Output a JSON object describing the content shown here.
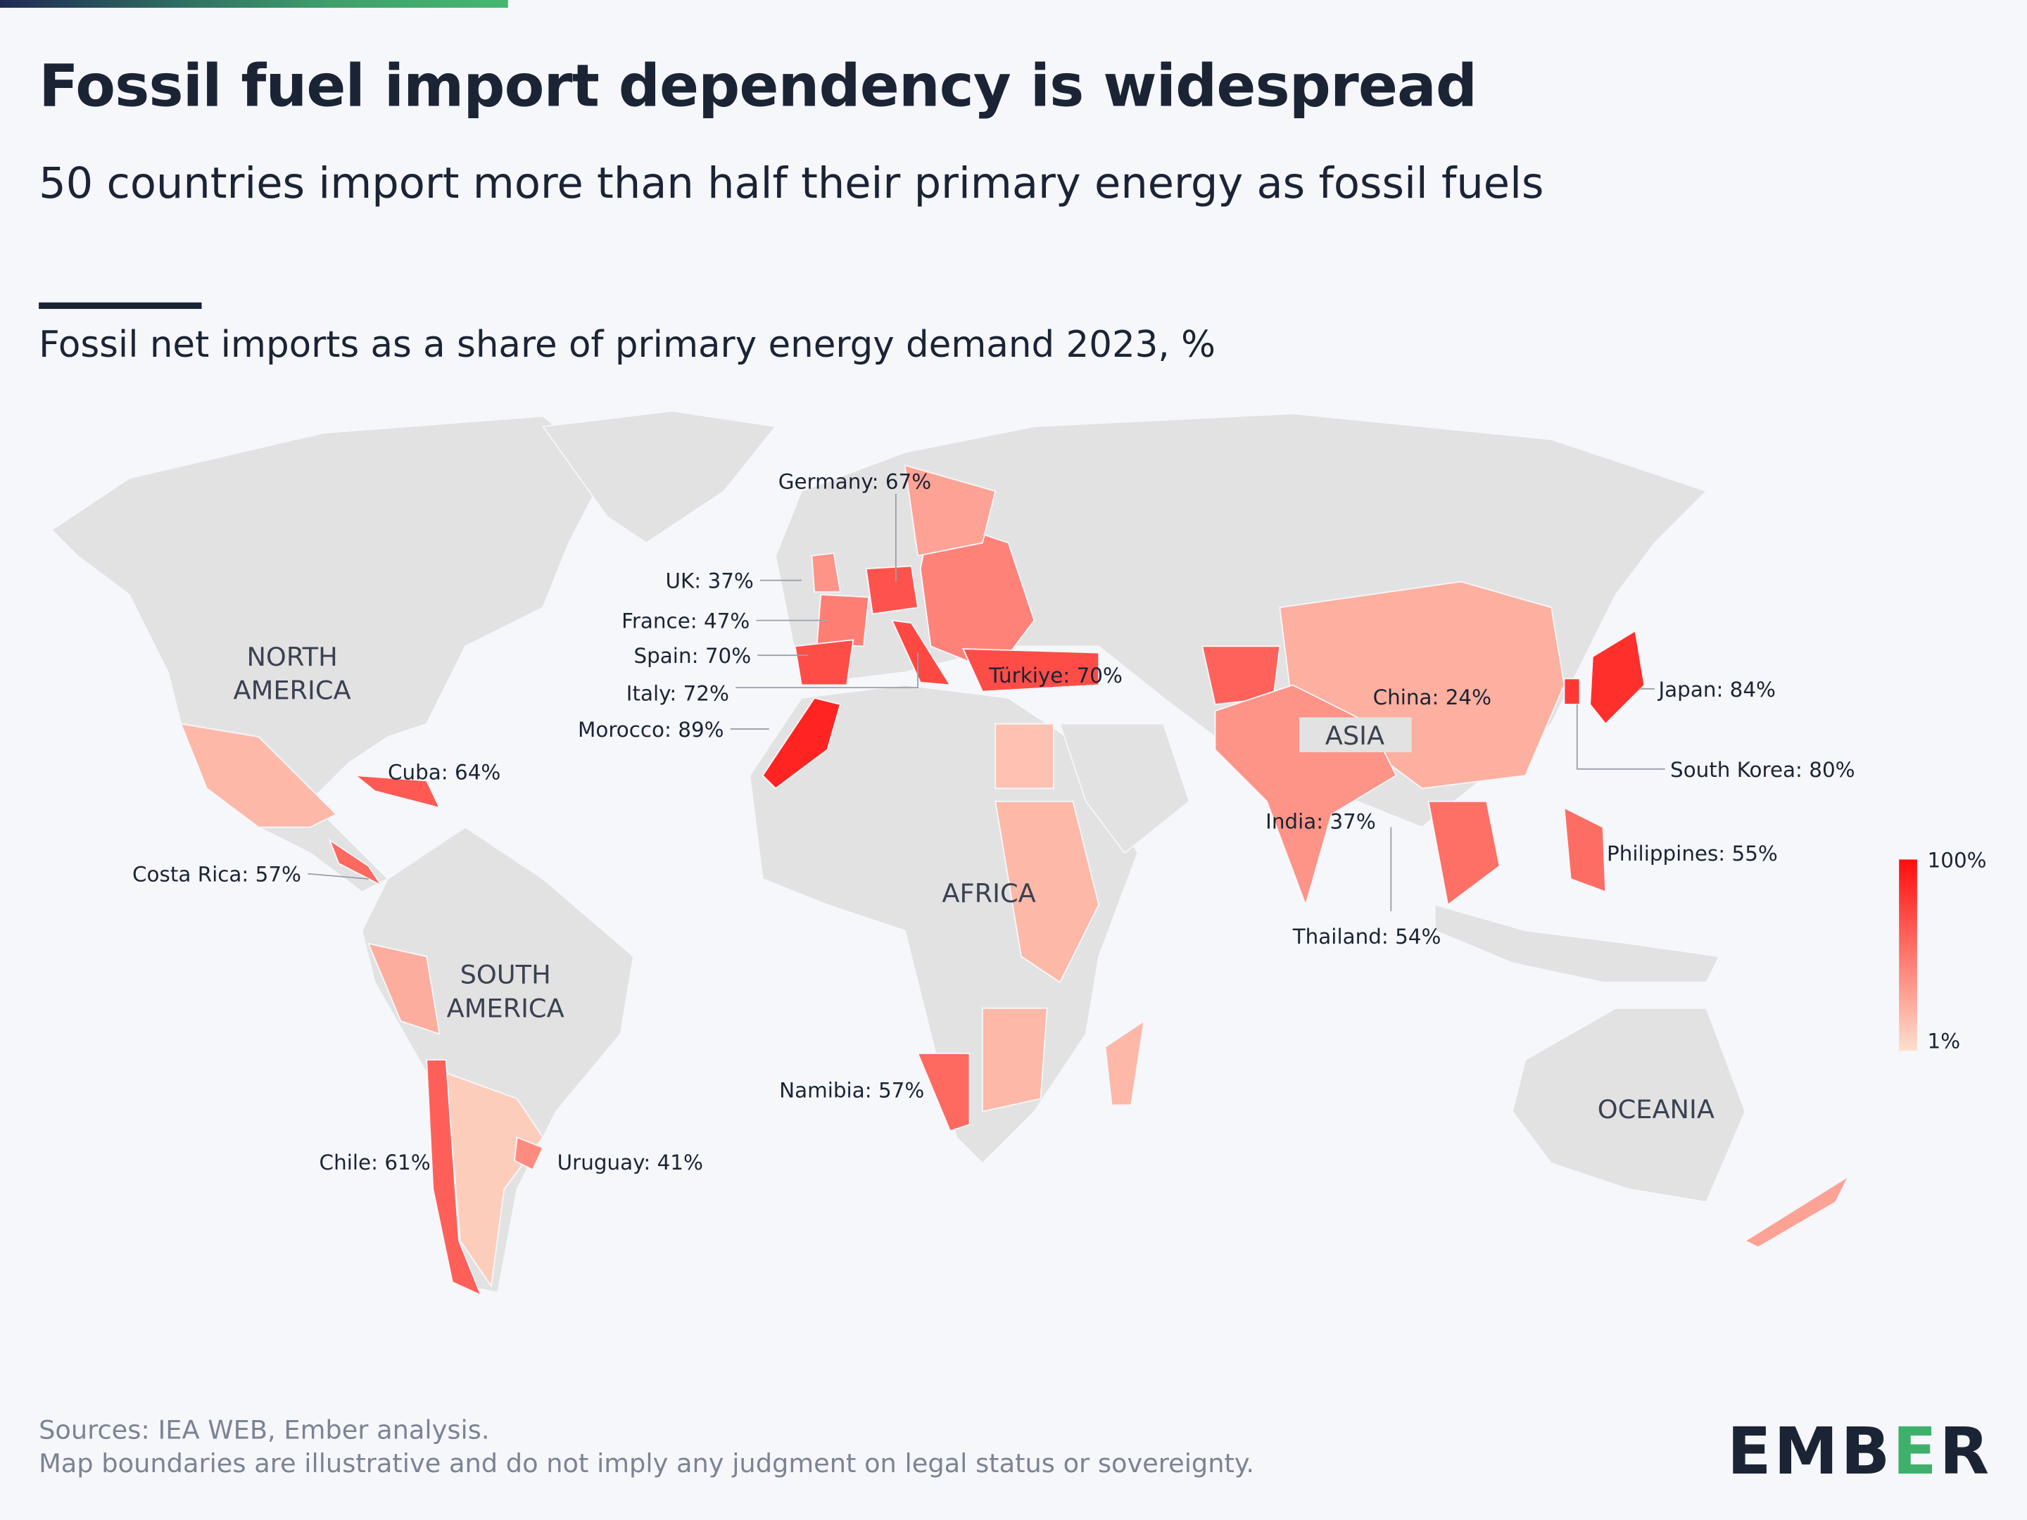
{
  "header": {
    "title": "Fossil fuel import dependency is widespread",
    "subtitle": "50 countries import more than half their primary energy as fossil fuels"
  },
  "chart_title": "Fossil net imports as a share of primary energy demand 2023, %",
  "colors": {
    "low": "#fde0cd",
    "high": "#ff0d0d",
    "no_data": "#e2e2e2",
    "background": "#f5f7fb"
  },
  "legend": {
    "max_label": "100%",
    "min_label": "1%",
    "min": 1,
    "max": 100
  },
  "regions": [
    "NORTH AMERICA",
    "SOUTH AMERICA",
    "AFRICA",
    "ASIA",
    "OCEANIA"
  ],
  "region_lines": {
    "north_america": [
      "NORTH",
      "AMERICA"
    ],
    "south_america": [
      "SOUTH",
      "AMERICA"
    ]
  },
  "countries": [
    {
      "name": "Germany",
      "value": 67,
      "label": "Germany: 67%"
    },
    {
      "name": "UK",
      "value": 37,
      "label": "UK: 37%"
    },
    {
      "name": "France",
      "value": 47,
      "label": "France: 47%"
    },
    {
      "name": "Spain",
      "value": 70,
      "label": "Spain: 70%"
    },
    {
      "name": "Italy",
      "value": 72,
      "label": "Italy: 72%"
    },
    {
      "name": "Morocco",
      "value": 89,
      "label": "Morocco: 89%"
    },
    {
      "name": "Türkiye",
      "value": 70,
      "label": "Türkiye: 70%"
    },
    {
      "name": "Cuba",
      "value": 64,
      "label": "Cuba: 64%"
    },
    {
      "name": "Costa Rica",
      "value": 57,
      "label": "Costa Rica: 57%"
    },
    {
      "name": "China",
      "value": 24,
      "label": "China: 24%"
    },
    {
      "name": "Japan",
      "value": 84,
      "label": "Japan: 84%"
    },
    {
      "name": "South Korea",
      "value": 80,
      "label": "South Korea: 80%"
    },
    {
      "name": "Philippines",
      "value": 55,
      "label": "Philippines: 55%"
    },
    {
      "name": "India",
      "value": 37,
      "label": "India: 37%"
    },
    {
      "name": "Thailand",
      "value": 54,
      "label": "Thailand: 54%"
    },
    {
      "name": "Namibia",
      "value": 57,
      "label": "Namibia: 57%"
    },
    {
      "name": "Chile",
      "value": 61,
      "label": "Chile: 61%"
    },
    {
      "name": "Uruguay",
      "value": 41,
      "label": "Uruguay: 41%"
    }
  ],
  "footer": {
    "sources": "Sources: IEA WEB, Ember analysis.",
    "disclaimer": "Map boundaries are illustrative and do not imply any judgment on legal status or sovereignty."
  },
  "logo": {
    "text_a": "EMB",
    "text_b": "E",
    "text_c": "R"
  }
}
